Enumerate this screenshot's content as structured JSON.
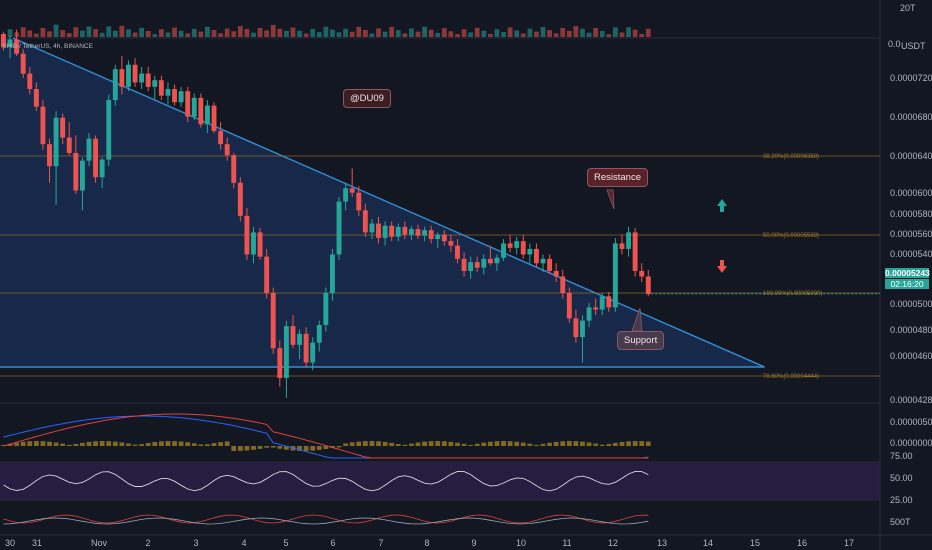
{
  "symbol_label": "SHIB / TetherUS, 4h, BINANCE",
  "watermark": "@DU09",
  "annotations": {
    "resistance": "Resistance",
    "support": "Support"
  },
  "current_price": {
    "value": "0.00005243",
    "countdown": "02:16:20"
  },
  "volume_axis": {
    "top": "20T",
    "bottom": "0.0",
    "unit": "USDT"
  },
  "price_axis_labels": [
    "0.00007200",
    "0.00006800",
    "0.00006400",
    "0.00006000",
    "0.00005800",
    "0.00005600",
    "0.00005400",
    "0.00005000",
    "0.00004800",
    "0.00004600",
    "0.00004280"
  ],
  "fib_levels": [
    {
      "label": "38.20%(0.00006368)",
      "price": 6.368e-05
    },
    {
      "label": "50.00%(0.00005589)",
      "price": 5.589e-05
    },
    {
      "label": "100.00%(0.00005090)",
      "price": 5.09e-05
    },
    {
      "label": "78.60%(0.00004444)",
      "price": 4.444e-05
    }
  ],
  "macd_axis_labels": [
    "0.00000500",
    "0.00000000"
  ],
  "rsi_axis_labels": [
    "75.00",
    "50.00",
    "25.00"
  ],
  "stoch_axis_labels": [
    "500T"
  ],
  "time_axis_labels": [
    "30",
    "31",
    "Nov",
    "2",
    "3",
    "4",
    "5",
    "6",
    "7",
    "8",
    "9",
    "10",
    "11",
    "12",
    "13",
    "14",
    "15",
    "16",
    "17"
  ],
  "colors": {
    "bull": "#26a69a",
    "bear": "#ef5350",
    "trend": "#2f8fd8",
    "fib": "#a77b2a",
    "background": "#131722",
    "triangle_fill": "#1a2b4f"
  },
  "chart_data": {
    "type": "candlestick",
    "title": "SHIB / TetherUS, 4h, BINANCE",
    "timeframe": "4h",
    "ylim": [
      4.18e-05,
      7.68e-05
    ],
    "x_range_days": [
      "Oct 30",
      "Nov 17"
    ],
    "candles_ohlc": [
      [
        7.6e-05,
        7.62e-05,
        7.45e-05,
        7.48e-05
      ],
      [
        7.48e-05,
        7.58e-05,
        7.38e-05,
        7.55e-05
      ],
      [
        7.55e-05,
        7.64e-05,
        7.4e-05,
        7.42e-05
      ],
      [
        7.42e-05,
        7.46e-05,
        7.2e-05,
        7.24e-05
      ],
      [
        7.24e-05,
        7.3e-05,
        7.05e-05,
        7.1e-05
      ],
      [
        7.1e-05,
        7.16e-05,
        6.9e-05,
        6.94e-05
      ],
      [
        6.94e-05,
        7e-05,
        6.55e-05,
        6.6e-05
      ],
      [
        6.6e-05,
        6.65e-05,
        6.25e-05,
        6.4e-05
      ],
      [
        6.4e-05,
        6.9e-05,
        6.05e-05,
        6.84e-05
      ],
      [
        6.84e-05,
        6.88e-05,
        6.6e-05,
        6.66e-05
      ],
      [
        6.66e-05,
        6.8e-05,
        6.5e-05,
        6.52e-05
      ],
      [
        6.52e-05,
        6.68e-05,
        6.15e-05,
        6.18e-05
      ],
      [
        6.18e-05,
        6.48e-05,
        6e-05,
        6.45e-05
      ],
      [
        6.45e-05,
        6.7e-05,
        6.4e-05,
        6.65e-05
      ],
      [
        6.65e-05,
        6.68e-05,
        6.25e-05,
        6.3e-05
      ],
      [
        6.3e-05,
        6.48e-05,
        6.2e-05,
        6.46e-05
      ],
      [
        6.46e-05,
        7.05e-05,
        6.4e-05,
        7e-05
      ],
      [
        7e-05,
        7.32e-05,
        6.95e-05,
        7.28e-05
      ],
      [
        7.28e-05,
        7.4e-05,
        7.05e-05,
        7.12e-05
      ],
      [
        7.12e-05,
        7.36e-05,
        7.08e-05,
        7.32e-05
      ],
      [
        7.32e-05,
        7.38e-05,
        7.12e-05,
        7.16e-05
      ],
      [
        7.16e-05,
        7.3e-05,
        7.1e-05,
        7.24e-05
      ],
      [
        7.24e-05,
        7.3e-05,
        7.08e-05,
        7.12e-05
      ],
      [
        7.12e-05,
        7.22e-05,
        7e-05,
        7.18e-05
      ],
      [
        7.18e-05,
        7.22e-05,
        7e-05,
        7.04e-05
      ],
      [
        7.04e-05,
        7.16e-05,
        6.96e-05,
        7.1e-05
      ],
      [
        7.1e-05,
        7.14e-05,
        6.95e-05,
        6.98e-05
      ],
      [
        6.98e-05,
        7.12e-05,
        6.94e-05,
        7.08e-05
      ],
      [
        7.08e-05,
        7.12e-05,
        6.8e-05,
        6.85e-05
      ],
      [
        6.85e-05,
        7.06e-05,
        6.82e-05,
        7.02e-05
      ],
      [
        7.02e-05,
        7.06e-05,
        6.75e-05,
        6.78e-05
      ],
      [
        6.78e-05,
        7e-05,
        6.7e-05,
        6.95e-05
      ],
      [
        6.95e-05,
        6.98e-05,
        6.7e-05,
        6.72e-05
      ],
      [
        6.72e-05,
        6.8e-05,
        6.55e-05,
        6.6e-05
      ],
      [
        6.6e-05,
        6.66e-05,
        6.45e-05,
        6.5e-05
      ],
      [
        6.5e-05,
        6.52e-05,
        6.2e-05,
        6.25e-05
      ],
      [
        6.25e-05,
        6.3e-05,
        5.9e-05,
        5.95e-05
      ],
      [
        5.95e-05,
        6.02e-05,
        5.55e-05,
        5.6e-05
      ],
      [
        5.6e-05,
        5.85e-05,
        5.52e-05,
        5.8e-05
      ],
      [
        5.8e-05,
        5.84e-05,
        5.55e-05,
        5.58e-05
      ],
      [
        5.58e-05,
        5.65e-05,
        5.2e-05,
        5.25e-05
      ],
      [
        5.25e-05,
        5.3e-05,
        4.7e-05,
        4.75e-05
      ],
      [
        4.75e-05,
        4.82e-05,
        4.4e-05,
        4.48e-05
      ],
      [
        4.48e-05,
        5e-05,
        4.3e-05,
        4.95e-05
      ],
      [
        4.95e-05,
        5.05e-05,
        4.75e-05,
        4.78e-05
      ],
      [
        4.78e-05,
        4.92e-05,
        4.65e-05,
        4.88e-05
      ],
      [
        4.88e-05,
        4.94e-05,
        4.58e-05,
        4.62e-05
      ],
      [
        4.62e-05,
        4.85e-05,
        4.55e-05,
        4.8e-05
      ],
      [
        4.8e-05,
        5e-05,
        4.72e-05,
        4.96e-05
      ],
      [
        4.96e-05,
        5.3e-05,
        4.9e-05,
        5.25e-05
      ],
      [
        5.25e-05,
        5.65e-05,
        5.18e-05,
        5.6e-05
      ],
      [
        5.6e-05,
        6.12e-05,
        5.55e-05,
        6.08e-05
      ],
      [
        6.08e-05,
        6.25e-05,
        6e-05,
        6.2e-05
      ],
      [
        6.2e-05,
        6.38e-05,
        6.12e-05,
        6.16e-05
      ],
      [
        6.16e-05,
        6.22e-05,
        5.95e-05,
        6e-05
      ],
      [
        6e-05,
        6.06e-05,
        5.76e-05,
        5.8e-05
      ],
      [
        5.8e-05,
        5.92e-05,
        5.74e-05,
        5.88e-05
      ],
      [
        5.88e-05,
        5.94e-05,
        5.7e-05,
        5.75e-05
      ],
      [
        5.75e-05,
        5.9e-05,
        5.68e-05,
        5.86e-05
      ],
      [
        5.86e-05,
        5.9e-05,
        5.72e-05,
        5.76e-05
      ],
      [
        5.76e-05,
        5.88e-05,
        5.72e-05,
        5.85e-05
      ],
      [
        5.85e-05,
        5.9e-05,
        5.74e-05,
        5.78e-05
      ],
      [
        5.78e-05,
        5.86e-05,
        5.73e-05,
        5.83e-05
      ],
      [
        5.83e-05,
        5.87e-05,
        5.74e-05,
        5.77e-05
      ],
      [
        5.77e-05,
        5.85e-05,
        5.72e-05,
        5.82e-05
      ],
      [
        5.82e-05,
        5.86e-05,
        5.7e-05,
        5.74e-05
      ],
      [
        5.74e-05,
        5.8e-05,
        5.66e-05,
        5.78e-05
      ],
      [
        5.78e-05,
        5.82e-05,
        5.68e-05,
        5.72e-05
      ],
      [
        5.72e-05,
        5.78e-05,
        5.62e-05,
        5.68e-05
      ],
      [
        5.68e-05,
        5.74e-05,
        5.52e-05,
        5.56e-05
      ],
      [
        5.56e-05,
        5.62e-05,
        5.4e-05,
        5.45e-05
      ],
      [
        5.45e-05,
        5.58e-05,
        5.38e-05,
        5.53e-05
      ],
      [
        5.53e-05,
        5.58e-05,
        5.44e-05,
        5.48e-05
      ],
      [
        5.48e-05,
        5.6e-05,
        5.42e-05,
        5.56e-05
      ],
      [
        5.56e-05,
        5.68e-05,
        5.5e-05,
        5.52e-05
      ],
      [
        5.52e-05,
        5.6e-05,
        5.45e-05,
        5.57e-05
      ],
      [
        5.57e-05,
        5.74e-05,
        5.54e-05,
        5.7e-05
      ],
      [
        5.7e-05,
        5.78e-05,
        5.62e-05,
        5.66e-05
      ],
      [
        5.66e-05,
        5.76e-05,
        5.6e-05,
        5.72e-05
      ],
      [
        5.72e-05,
        5.78e-05,
        5.56e-05,
        5.6e-05
      ],
      [
        5.6e-05,
        5.7e-05,
        5.52e-05,
        5.65e-05
      ],
      [
        5.65e-05,
        5.7e-05,
        5.48e-05,
        5.52e-05
      ],
      [
        5.52e-05,
        5.6e-05,
        5.44e-05,
        5.56e-05
      ],
      [
        5.56e-05,
        5.6e-05,
        5.42e-05,
        5.45e-05
      ],
      [
        5.45e-05,
        5.52e-05,
        5.35e-05,
        5.4e-05
      ],
      [
        5.4e-05,
        5.46e-05,
        5.2e-05,
        5.25e-05
      ],
      [
        5.25e-05,
        5.3e-05,
        4.98e-05,
        5.02e-05
      ],
      [
        5.02e-05,
        5.1e-05,
        4.8e-05,
        4.85e-05
      ],
      [
        4.85e-05,
        5.05e-05,
        4.62e-05,
        5e-05
      ],
      [
        5e-05,
        5.16e-05,
        4.94e-05,
        5.12e-05
      ],
      [
        5.12e-05,
        5.2e-05,
        5.05e-05,
        5.1e-05
      ],
      [
        5.1e-05,
        5.25e-05,
        5.05e-05,
        5.22e-05
      ],
      [
        5.22e-05,
        5.26e-05,
        5.08e-05,
        5.12e-05
      ],
      [
        5.12e-05,
        5.75e-05,
        5.08e-05,
        5.7e-05
      ],
      [
        5.7e-05,
        5.78e-05,
        5.6e-05,
        5.65e-05
      ],
      [
        5.65e-05,
        5.85e-05,
        5.58e-05,
        5.8e-05
      ],
      [
        5.8e-05,
        5.84e-05,
        5.4e-05,
        5.45e-05
      ],
      [
        5.45e-05,
        5.52e-05,
        5.35e-05,
        5.4e-05
      ],
      [
        5.4e-05,
        5.46e-05,
        5.22e-05,
        5.24e-05
      ]
    ],
    "resistance_trendline": [
      [
        "Oct 30",
        7.8e-05
      ],
      [
        "Nov 16",
        4.44e-05
      ]
    ],
    "support_line": 4.44e-05,
    "indicators": [
      "Volume",
      "MACD",
      "RSI",
      "Stochastic RSI"
    ]
  }
}
